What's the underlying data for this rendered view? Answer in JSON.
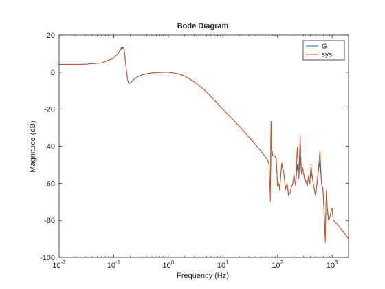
{
  "colors": {
    "G": "#0072BD",
    "sys": "#D95319",
    "axis": "#262626",
    "background": "#ffffff"
  },
  "chart_data": {
    "type": "line",
    "title": "Bode Diagram",
    "xlabel": "Frequency  (Hz)",
    "ylabel": "Magnitude (dB)",
    "xscale": "log",
    "xlim": [
      0.01,
      2000
    ],
    "ylim": [
      -100,
      20
    ],
    "x_ticks": [
      {
        "value": 0.01,
        "base": "10",
        "exp": "-2"
      },
      {
        "value": 0.1,
        "base": "10",
        "exp": "-1"
      },
      {
        "value": 1,
        "base": "10",
        "exp": "0"
      },
      {
        "value": 10,
        "base": "10",
        "exp": "1"
      },
      {
        "value": 100,
        "base": "10",
        "exp": "2"
      },
      {
        "value": 1000,
        "base": "10",
        "exp": "3"
      }
    ],
    "y_ticks": [
      {
        "value": 20,
        "label": "20"
      },
      {
        "value": 0,
        "label": "0"
      },
      {
        "value": -20,
        "label": "-20"
      },
      {
        "value": -40,
        "label": "-40"
      },
      {
        "value": -60,
        "label": "-60"
      },
      {
        "value": -80,
        "label": "-80"
      },
      {
        "value": -100,
        "label": "-100"
      }
    ],
    "grid": false,
    "legend": {
      "position": "top-right",
      "entries": [
        "G",
        "sys"
      ]
    },
    "series": [
      {
        "name": "G",
        "x": [
          0.01,
          0.03,
          0.06,
          0.1,
          0.12,
          0.14,
          0.155,
          0.165,
          0.18,
          0.19,
          0.21,
          0.25,
          0.3,
          0.4,
          0.5,
          0.7,
          1,
          1.5,
          2,
          3,
          5,
          7,
          10,
          15,
          20,
          30,
          40,
          50,
          60,
          65,
          70,
          72,
          74,
          75,
          76,
          77,
          78,
          80,
          82,
          85,
          90,
          95,
          100,
          105,
          110,
          115,
          120,
          130,
          140,
          150,
          160,
          170,
          180,
          190,
          200,
          215,
          230,
          245,
          260,
          275,
          290,
          310,
          330,
          350,
          370,
          390,
          410,
          440,
          470,
          500,
          530,
          560,
          600,
          640,
          680,
          720,
          750,
          770,
          790,
          810,
          830,
          860,
          900,
          950,
          1000,
          1050,
          1100,
          1200,
          1400,
          1700,
          2000
        ],
        "y": [
          4.2,
          4.3,
          5.0,
          7.5,
          10.0,
          13.0,
          12.5,
          5.0,
          -4.5,
          -6.2,
          -5.3,
          -3.2,
          -1.9,
          -0.9,
          -0.4,
          -0.1,
          0,
          -0.8,
          -2.1,
          -5.2,
          -10.6,
          -15.1,
          -20.1,
          -25.4,
          -29.2,
          -35.0,
          -39.3,
          -42.8,
          -45.7,
          -47.0,
          -49.8,
          -59.8,
          -62.3,
          -55.0,
          -41.5,
          -37.0,
          -40.5,
          -43.5,
          -45.0,
          -45.2,
          -45.3,
          -47.0,
          -60.5,
          -60.0,
          -62.5,
          -55.5,
          -50.0,
          -54.0,
          -62.5,
          -61.0,
          -66.5,
          -65.0,
          -62.0,
          -60.5,
          -56.5,
          -61.0,
          -50.0,
          -57.5,
          -45.0,
          -55.0,
          -52.5,
          -56.5,
          -58.5,
          -61.5,
          -57.0,
          -60.0,
          -53.5,
          -58.0,
          -62.5,
          -66.0,
          -60.0,
          -53.5,
          -48.0,
          -60.0,
          -63.0,
          -76.5,
          -91.0,
          -72.5,
          -64.0,
          -71.5,
          -75.0,
          -80.0,
          -79.0,
          -75.5,
          -73.5,
          -80.0,
          -80.5,
          -81.5,
          -84.0,
          -87.0,
          -90.0
        ]
      },
      {
        "name": "sys",
        "x": [
          0.01,
          0.03,
          0.06,
          0.1,
          0.12,
          0.14,
          0.155,
          0.165,
          0.18,
          0.19,
          0.21,
          0.25,
          0.3,
          0.4,
          0.5,
          0.7,
          1,
          1.5,
          2,
          3,
          5,
          7,
          10,
          15,
          20,
          30,
          40,
          50,
          60,
          65,
          70,
          72,
          74,
          75,
          76,
          77,
          78,
          80,
          82,
          85,
          90,
          95,
          100,
          105,
          110,
          115,
          120,
          130,
          140,
          150,
          160,
          170,
          180,
          190,
          200,
          215,
          230,
          245,
          260,
          275,
          290,
          310,
          330,
          350,
          370,
          390,
          410,
          440,
          470,
          500,
          530,
          560,
          600,
          640,
          680,
          720,
          750,
          770,
          790,
          810,
          830,
          860,
          900,
          950,
          1000,
          1050,
          1100,
          1200,
          1400,
          1700,
          2000
        ],
        "y": [
          4.2,
          4.3,
          5.0,
          7.5,
          10.0,
          13.5,
          13.0,
          5.0,
          -4.5,
          -6.2,
          -5.3,
          -3.2,
          -1.9,
          -0.9,
          -0.4,
          -0.1,
          0,
          -0.8,
          -2.1,
          -5.2,
          -10.6,
          -15.1,
          -20.1,
          -25.4,
          -29.2,
          -35.0,
          -39.3,
          -42.8,
          -45.7,
          -47.0,
          -49.8,
          -59.0,
          -70.0,
          -40.0,
          -26.5,
          -28.5,
          -40.0,
          -43.5,
          -45.0,
          -45.2,
          -45.3,
          -47.0,
          -61.5,
          -60.0,
          -64.0,
          -55.0,
          -49.0,
          -54.0,
          -63.5,
          -60.0,
          -67.0,
          -65.0,
          -61.5,
          -60.5,
          -55.0,
          -61.5,
          -40.5,
          -56.5,
          -34.0,
          -55.0,
          -51.5,
          -57.5,
          -59.0,
          -61.5,
          -56.0,
          -60.5,
          -50.0,
          -58.0,
          -63.0,
          -67.0,
          -59.0,
          -53.0,
          -42.0,
          -60.0,
          -64.0,
          -78.0,
          -92.0,
          -72.5,
          -63.5,
          -72.0,
          -76.0,
          -80.0,
          -79.0,
          -75.5,
          -73.5,
          -80.0,
          -80.5,
          -81.5,
          -84.0,
          -87.0,
          -90.0
        ]
      }
    ]
  }
}
